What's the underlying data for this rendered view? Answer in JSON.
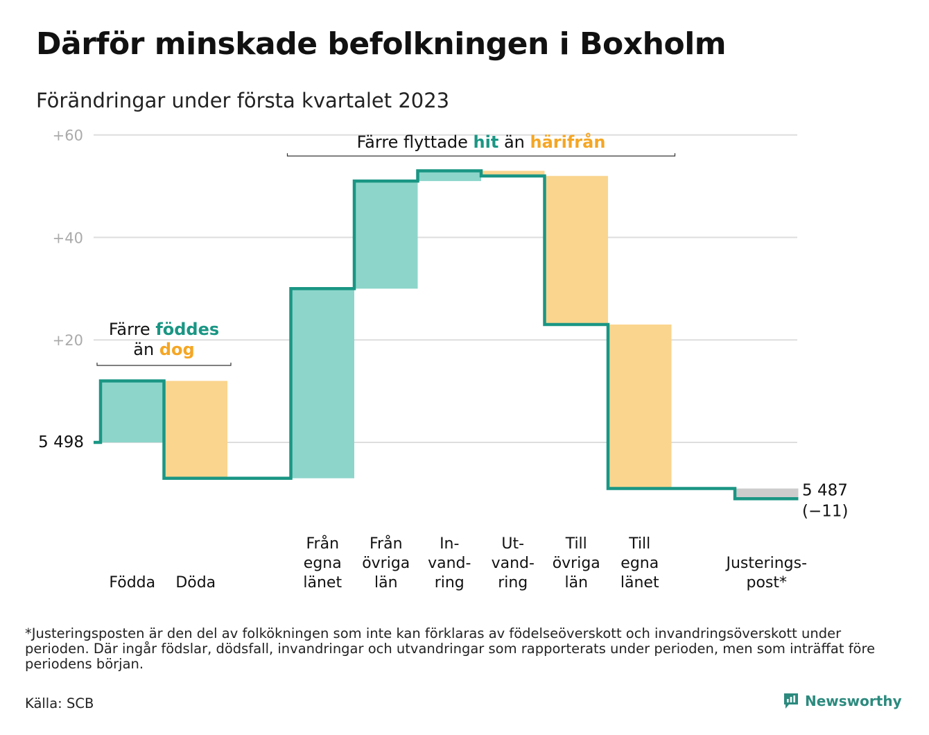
{
  "title": "Därför minskade befolkningen i Boxholm",
  "subtitle": "Förändringar under första kvartalet 2023",
  "colors": {
    "increase": "#8dd5cb",
    "decrease": "#fad58e",
    "adjustment": "#cccccc",
    "line": "#1a9684",
    "teal_text": "#1a9684",
    "orange_text": "#f5a623",
    "grid": "#dddddd",
    "tick_text": "#aaaaaa"
  },
  "chart_data": {
    "type": "waterfall",
    "start": {
      "value": 5498,
      "label": "5 498"
    },
    "end": {
      "value": 5487,
      "label": "5 487",
      "change_label": "(−11)"
    },
    "y_ticks": [
      {
        "value": 60,
        "label": "+60"
      },
      {
        "value": 40,
        "label": "+40"
      },
      {
        "value": 20,
        "label": "+20"
      },
      {
        "value": 0,
        "label": ""
      }
    ],
    "ylim": [
      -11,
      60
    ],
    "grid": true,
    "steps": [
      {
        "key": "fodda",
        "lines": [
          "Födda"
        ],
        "change": 12,
        "kind": "increase"
      },
      {
        "key": "doda",
        "lines": [
          "Döda"
        ],
        "change": -19,
        "kind": "decrease"
      },
      {
        "key": "gap",
        "lines": [],
        "change": 0,
        "kind": "gap"
      },
      {
        "key": "fran-egna-lanet",
        "lines": [
          "Från",
          "egna",
          "länet"
        ],
        "change": 37,
        "kind": "increase"
      },
      {
        "key": "fran-ovriga-lan",
        "lines": [
          "Från",
          "övriga",
          "län"
        ],
        "change": 21,
        "kind": "increase"
      },
      {
        "key": "invandring",
        "lines": [
          "In-",
          "vand-",
          "ring"
        ],
        "change": 2,
        "kind": "increase"
      },
      {
        "key": "utvandring",
        "lines": [
          "Ut-",
          "vand-",
          "ring"
        ],
        "change": -1,
        "kind": "decrease"
      },
      {
        "key": "till-ovriga-lan",
        "lines": [
          "Till",
          "övriga",
          "län"
        ],
        "change": -29,
        "kind": "decrease"
      },
      {
        "key": "till-egna-lanet",
        "lines": [
          "Till",
          "egna",
          "länet"
        ],
        "change": -32,
        "kind": "decrease"
      },
      {
        "key": "gap2",
        "lines": [],
        "change": 0,
        "kind": "gap"
      },
      {
        "key": "justeringspost",
        "lines": [
          "Justerings-",
          "post*"
        ],
        "change": -2,
        "kind": "adjustment"
      }
    ],
    "annotations": [
      {
        "key": "births",
        "line1_parts": [
          "Färre ",
          "föddes"
        ],
        "line2_parts": [
          "än ",
          "dog"
        ],
        "spans_steps": [
          0,
          1
        ]
      },
      {
        "key": "migration",
        "line1_parts": [
          "Färre flyttade ",
          "hit",
          " än ",
          "härifrån"
        ],
        "spans_steps": [
          3,
          8
        ]
      }
    ]
  },
  "footnote": "*Justeringsposten är den del av folkökningen som inte kan förklaras av födelseöverskott och invandringsöverskott under perioden. Där ingår födslar, dödsfall, invandringar och utvandringar som rapporterats under perioden, men som inträffat före periodens början.",
  "source": "Källa: SCB",
  "brand": {
    "name": "Newsworthy",
    "icon": "newsworthy-logo-icon"
  }
}
